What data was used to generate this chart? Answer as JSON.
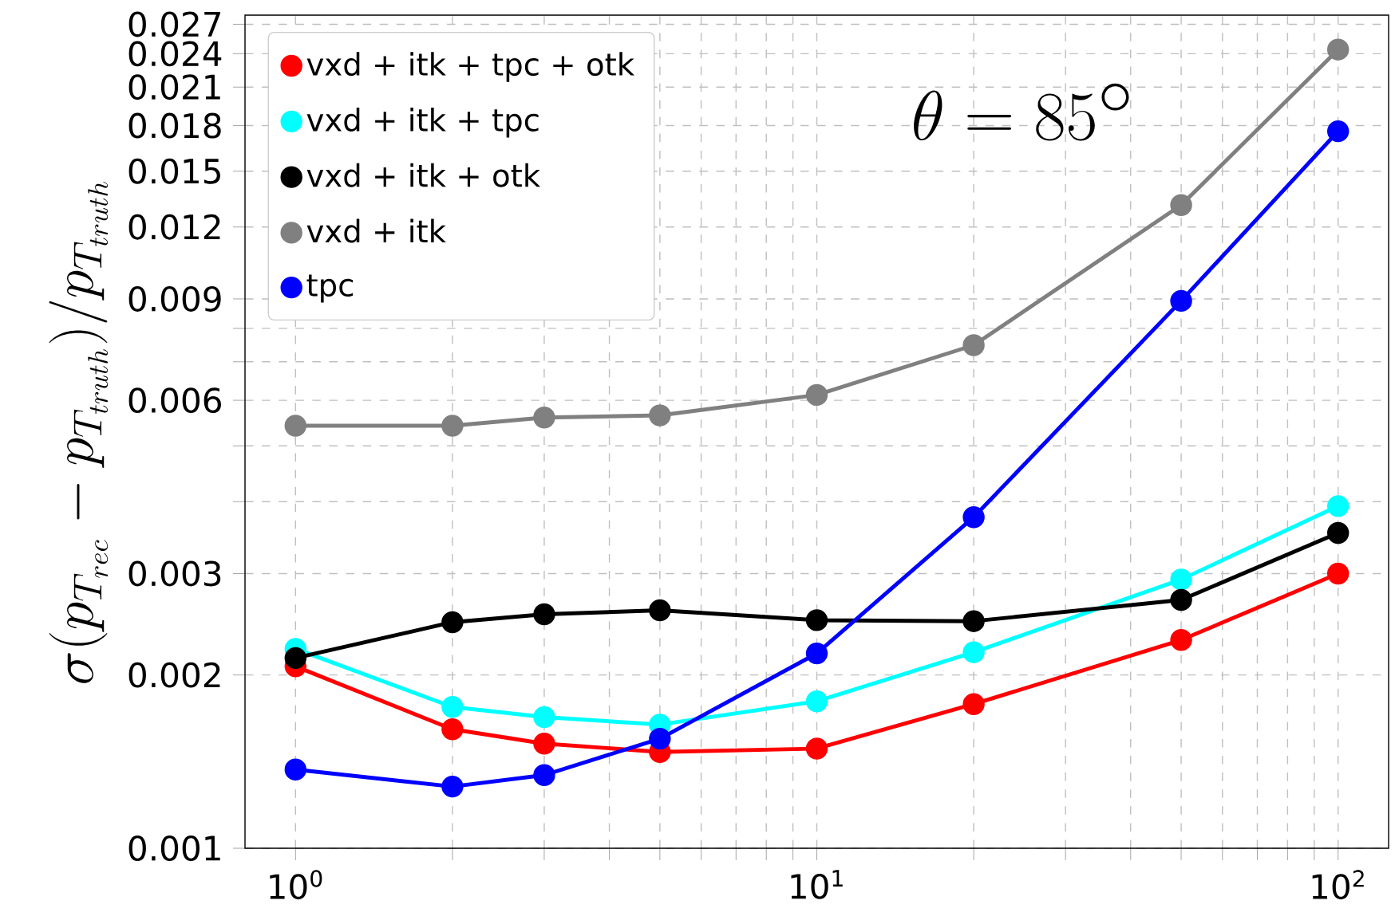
{
  "chart_data": {
    "type": "line",
    "ylabel": "\\sigma(p_{T_{rec}} - p_{T_{truth}})/p_{T_{truth}}",
    "annotations": [
      "\\theta = 85^{\\circ}"
    ],
    "x": [
      1,
      2,
      3,
      5,
      10,
      20,
      50,
      100
    ],
    "series": [
      {
        "name": "vxd + itk + tpc + otk",
        "color": "#ff0000",
        "values": [
          0.00207,
          0.00161,
          0.00152,
          0.00147,
          0.00149,
          0.00178,
          0.0023,
          0.003
        ]
      },
      {
        "name": "vxd + itk + tpc",
        "color": "#00ffff",
        "values": [
          0.00222,
          0.00176,
          0.00169,
          0.00164,
          0.0018,
          0.00219,
          0.00293,
          0.00393
        ]
      },
      {
        "name": "vxd + itk + otk",
        "color": "#000000",
        "values": [
          0.00214,
          0.00247,
          0.00255,
          0.00259,
          0.00249,
          0.00248,
          0.0027,
          0.00353
        ]
      },
      {
        "name": "vxd + itk",
        "color": "#808080",
        "values": [
          0.00542,
          0.00542,
          0.0056,
          0.00565,
          0.00613,
          0.00748,
          0.0131,
          0.0244
        ]
      },
      {
        "name": "tpc",
        "color": "#0000ff",
        "values": [
          0.00137,
          0.00128,
          0.00134,
          0.00155,
          0.00218,
          0.00376,
          0.00893,
          0.0176
        ]
      }
    ],
    "log": "xy",
    "xlim": [
      0.8,
      125
    ],
    "ylim": [
      0.001,
      0.028
    ],
    "xticks": [
      {
        "value": 1,
        "label": "10$^{0}$"
      },
      {
        "value": 2,
        "label": null
      },
      {
        "value": 3,
        "label": null
      },
      {
        "value": 4,
        "label": null
      },
      {
        "value": 5,
        "label": null
      },
      {
        "value": 6,
        "label": null
      },
      {
        "value": 7,
        "label": null
      },
      {
        "value": 8,
        "label": null
      },
      {
        "value": 9,
        "label": null
      },
      {
        "value": 10,
        "label": "10$^{1}$"
      },
      {
        "value": 20,
        "label": null
      },
      {
        "value": 30,
        "label": null
      },
      {
        "value": 40,
        "label": null
      },
      {
        "value": 50,
        "label": null
      },
      {
        "value": 60,
        "label": null
      },
      {
        "value": 70,
        "label": null
      },
      {
        "value": 80,
        "label": null
      },
      {
        "value": 90,
        "label": null
      },
      {
        "value": 100,
        "label": "10$^{2}$"
      }
    ],
    "yticks": [
      0.001,
      0.002,
      0.003,
      {
        "value": 0.004,
        "label": null
      },
      {
        "value": 0.005,
        "label": null
      },
      0.006,
      {
        "value": 0.007,
        "label": null
      },
      {
        "value": 0.008,
        "label": null
      },
      0.009,
      0.012,
      0.015,
      0.018,
      0.021,
      0.024,
      0.027
    ],
    "grid": true,
    "legend": "top left",
    "marker": "circle",
    "line_style": "solid"
  }
}
